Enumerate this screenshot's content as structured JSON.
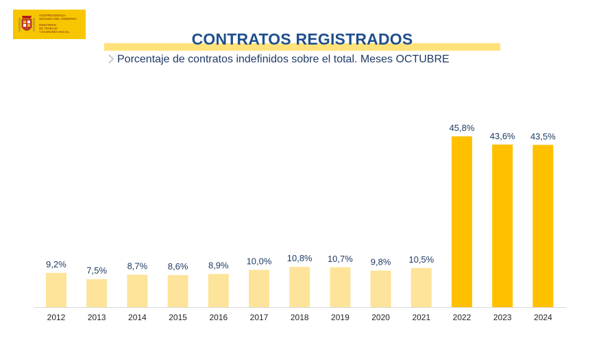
{
  "header": {
    "logo": {
      "lines": [
        "VICEPRESIDENCIA",
        "SEGUNDA DEL GOBIERNO",
        "MINISTERIO",
        "DE TRABAJO",
        "Y ECONOMÍA SOCIAL"
      ]
    }
  },
  "chart_data": {
    "type": "bar",
    "title": "CONTRATOS REGISTRADOS",
    "subtitle": "Porcentaje de contratos indefinidos sobre el total. Meses OCTUBRE",
    "categories": [
      "2012",
      "2013",
      "2014",
      "2015",
      "2016",
      "2017",
      "2018",
      "2019",
      "2020",
      "2021",
      "2022",
      "2023",
      "2024"
    ],
    "values": [
      9.2,
      7.5,
      8.7,
      8.6,
      8.9,
      10.0,
      10.8,
      10.7,
      9.8,
      10.5,
      45.8,
      43.6,
      43.5
    ],
    "data_labels": [
      "9,2%",
      "7,5%",
      "8,7%",
      "8,6%",
      "8,9%",
      "10,0%",
      "10,8%",
      "10,7%",
      "9,8%",
      "10,5%",
      "45,8%",
      "43,6%",
      "43,5%"
    ],
    "bar_colors": [
      "#fde49a",
      "#fde49a",
      "#fde49a",
      "#fde49a",
      "#fde49a",
      "#fde49a",
      "#fde49a",
      "#fde49a",
      "#fde49a",
      "#fde49a",
      "#ffc000",
      "#ffc000",
      "#ffc000"
    ],
    "xlabel": "",
    "ylabel": "",
    "ylim": [
      0,
      50
    ],
    "grid": false,
    "legend": "none"
  }
}
